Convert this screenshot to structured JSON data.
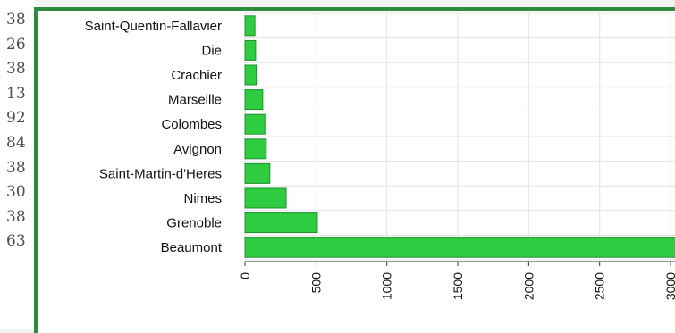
{
  "department_codes": [
    "38",
    "26",
    "38",
    "13",
    "92",
    "84",
    "38",
    "30",
    "38",
    "63"
  ],
  "colors": {
    "bar": "#2ecc40",
    "bar_edge": "#1f8f2c",
    "frame": "#2e8b3a",
    "grid": "#e3e3e3"
  },
  "chart_data": {
    "type": "bar",
    "orientation": "horizontal",
    "categories": [
      "Saint-Quentin-Fallavier",
      "Die",
      "Crachier",
      "Marseille",
      "Colombes",
      "Avignon",
      "Saint-Martin-d'Heres",
      "Nimes",
      "Grenoble",
      "Beaumont"
    ],
    "values": [
      70,
      75,
      80,
      125,
      140,
      150,
      175,
      290,
      510,
      3050
    ],
    "title": "",
    "xlabel": "",
    "ylabel": "",
    "xlim": [
      0,
      3050
    ],
    "xticks": [
      0,
      500,
      1000,
      1500,
      2000,
      2500,
      3000
    ],
    "grid": true,
    "legend": false
  }
}
